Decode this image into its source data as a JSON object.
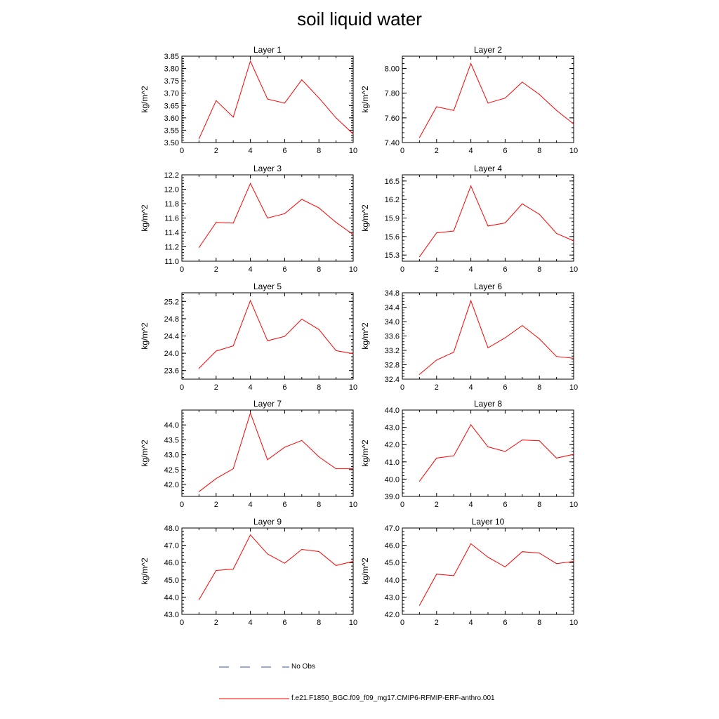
{
  "figure": {
    "title": "soil liquid water"
  },
  "legend": [
    {
      "label": "No Obs",
      "color": "#3b4fb0",
      "dash": true
    },
    {
      "label": "f.e21.F1850_BGC.f09_f09_mg17.CMIP6-RFMIP-ERF-anthro.001",
      "color": "#ff0000",
      "dash": false
    }
  ],
  "chart_data": [
    {
      "type": "line",
      "title": "Layer 1",
      "ylabel": "kg/m^2",
      "x": [
        1,
        2,
        3,
        4,
        5,
        6,
        7,
        8,
        9,
        10
      ],
      "values": [
        3.515,
        3.67,
        3.603,
        3.83,
        3.676,
        3.66,
        3.754,
        3.681,
        3.6,
        3.535
      ],
      "xlim": [
        0,
        10
      ],
      "ylim": [
        3.5,
        3.85
      ],
      "xticks": [
        0,
        2,
        4,
        6,
        8,
        10
      ],
      "yticks": [
        "3.50",
        "3.55",
        "3.60",
        "3.65",
        "3.70",
        "3.75",
        "3.80",
        "3.85"
      ],
      "yminor": 0.01,
      "grid": false
    },
    {
      "type": "line",
      "title": "Layer 2",
      "ylabel": "kg/m^2",
      "x": [
        1,
        2,
        3,
        4,
        5,
        6,
        7,
        8,
        9,
        10
      ],
      "values": [
        7.44,
        7.69,
        7.66,
        8.04,
        7.72,
        7.76,
        7.89,
        7.79,
        7.66,
        7.55
      ],
      "xlim": [
        0,
        10
      ],
      "ylim": [
        7.4,
        8.1
      ],
      "xticks": [
        0,
        2,
        4,
        6,
        8,
        10
      ],
      "yticks": [
        "7.40",
        "7.60",
        "7.80",
        "8.00"
      ],
      "yminor": 0.04,
      "grid": false
    },
    {
      "type": "line",
      "title": "Layer 3",
      "ylabel": "kg/m^2",
      "x": [
        1,
        2,
        3,
        4,
        5,
        6,
        7,
        8,
        9,
        10
      ],
      "values": [
        11.19,
        11.54,
        11.53,
        12.08,
        11.6,
        11.66,
        11.86,
        11.74,
        11.54,
        11.37
      ],
      "xlim": [
        0,
        10
      ],
      "ylim": [
        11.0,
        12.2
      ],
      "xticks": [
        0,
        2,
        4,
        6,
        8,
        10
      ],
      "yticks": [
        "11.0",
        "11.2",
        "11.4",
        "11.6",
        "11.8",
        "12.0",
        "12.2"
      ],
      "yminor": 0.04,
      "grid": false
    },
    {
      "type": "line",
      "title": "Layer 4",
      "ylabel": "kg/m^2",
      "x": [
        1,
        2,
        3,
        4,
        5,
        6,
        7,
        8,
        9,
        10
      ],
      "values": [
        15.27,
        15.66,
        15.69,
        16.42,
        15.77,
        15.82,
        16.13,
        15.96,
        15.65,
        15.53
      ],
      "xlim": [
        0,
        10
      ],
      "ylim": [
        15.2,
        16.6
      ],
      "xticks": [
        0,
        2,
        4,
        6,
        8,
        10
      ],
      "yticks": [
        "15.3",
        "15.6",
        "15.9",
        "16.2",
        "16.5"
      ],
      "yminor": 0.06,
      "grid": false
    },
    {
      "type": "line",
      "title": "Layer 5",
      "ylabel": "kg/m^2",
      "x": [
        1,
        2,
        3,
        4,
        5,
        6,
        7,
        8,
        9,
        10
      ],
      "values": [
        23.65,
        24.05,
        24.17,
        25.22,
        24.29,
        24.39,
        24.79,
        24.55,
        24.06,
        23.99
      ],
      "xlim": [
        0,
        10
      ],
      "ylim": [
        23.4,
        25.4
      ],
      "xticks": [
        0,
        2,
        4,
        6,
        8,
        10
      ],
      "yticks": [
        "23.6",
        "24.0",
        "24.4",
        "24.8",
        "25.2"
      ],
      "yminor": 0.08,
      "grid": false
    },
    {
      "type": "line",
      "title": "Layer 6",
      "ylabel": "kg/m^2",
      "x": [
        1,
        2,
        3,
        4,
        5,
        6,
        7,
        8,
        9,
        10
      ],
      "values": [
        32.53,
        32.93,
        33.15,
        34.58,
        33.27,
        33.55,
        33.89,
        33.52,
        33.03,
        32.98
      ],
      "xlim": [
        0,
        10
      ],
      "ylim": [
        32.4,
        34.8
      ],
      "xticks": [
        0,
        2,
        4,
        6,
        8,
        10
      ],
      "yticks": [
        "32.4",
        "32.8",
        "33.2",
        "33.6",
        "34.0",
        "34.4",
        "34.8"
      ],
      "yminor": 0.08,
      "grid": false
    },
    {
      "type": "line",
      "title": "Layer 7",
      "ylabel": "kg/m^2",
      "x": [
        1,
        2,
        3,
        4,
        5,
        6,
        7,
        8,
        9,
        10
      ],
      "values": [
        41.76,
        42.2,
        42.53,
        44.4,
        42.83,
        43.25,
        43.48,
        42.93,
        42.53,
        42.53
      ],
      "xlim": [
        0,
        10
      ],
      "ylim": [
        41.6,
        44.5
      ],
      "xticks": [
        0,
        2,
        4,
        6,
        8,
        10
      ],
      "yticks": [
        "42.0",
        "42.5",
        "43.0",
        "43.5",
        "44.0"
      ],
      "yminor": 0.1,
      "grid": false
    },
    {
      "type": "line",
      "title": "Layer 8",
      "ylabel": "kg/m^2",
      "x": [
        1,
        2,
        3,
        4,
        5,
        6,
        7,
        8,
        9,
        10
      ],
      "values": [
        39.88,
        41.22,
        41.35,
        43.15,
        41.87,
        41.6,
        42.27,
        42.22,
        41.22,
        41.44
      ],
      "xlim": [
        0,
        10
      ],
      "ylim": [
        39.0,
        44.0
      ],
      "xticks": [
        0,
        2,
        4,
        6,
        8,
        10
      ],
      "yticks": [
        "39.0",
        "40.0",
        "41.0",
        "42.0",
        "43.0",
        "44.0"
      ],
      "yminor": 0.2,
      "grid": false
    },
    {
      "type": "line",
      "title": "Layer 9",
      "ylabel": "kg/m^2",
      "x": [
        1,
        2,
        3,
        4,
        5,
        6,
        7,
        8,
        9,
        10
      ],
      "values": [
        43.85,
        45.54,
        45.62,
        47.6,
        46.5,
        45.96,
        46.76,
        46.64,
        45.83,
        46.07
      ],
      "xlim": [
        0,
        10
      ],
      "ylim": [
        43.0,
        48.0
      ],
      "xticks": [
        0,
        2,
        4,
        6,
        8,
        10
      ],
      "yticks": [
        "43.0",
        "44.0",
        "45.0",
        "46.0",
        "47.0",
        "48.0"
      ],
      "yminor": 0.2,
      "grid": false
    },
    {
      "type": "line",
      "title": "Layer 10",
      "ylabel": "kg/m^2",
      "x": [
        1,
        2,
        3,
        4,
        5,
        6,
        7,
        8,
        9,
        10
      ],
      "values": [
        42.52,
        44.33,
        44.24,
        46.09,
        45.31,
        44.75,
        45.63,
        45.55,
        44.94,
        45.07
      ],
      "xlim": [
        0,
        10
      ],
      "ylim": [
        42.0,
        47.0
      ],
      "xticks": [
        0,
        2,
        4,
        6,
        8,
        10
      ],
      "yticks": [
        "42.0",
        "43.0",
        "44.0",
        "45.0",
        "46.0",
        "47.0"
      ],
      "yminor": 0.2,
      "grid": false
    }
  ]
}
